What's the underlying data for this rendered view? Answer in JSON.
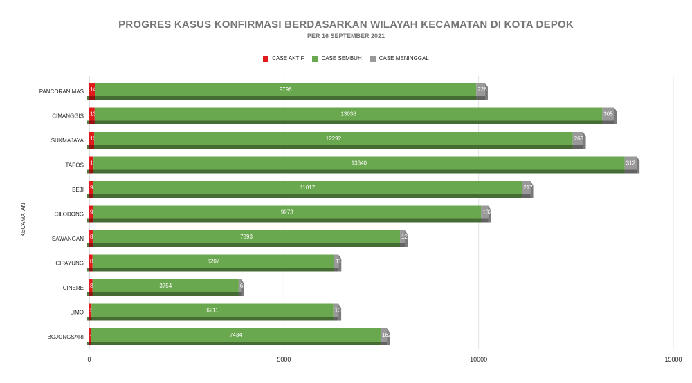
{
  "chart_data": {
    "type": "bar",
    "orientation": "horizontal",
    "stacked": true,
    "title": "PROGRES KASUS KONFIRMASI BERDASARKAN WILAYAH KECAMATAN DI KOTA DEPOK",
    "subtitle": "PER 16 SEPTEMBER 2021",
    "ylabel": "KECAMATAN",
    "xlabel": "",
    "xlim": [
      0,
      15000
    ],
    "xticks": [
      "0",
      "5000",
      "10000",
      "15000"
    ],
    "grid": true,
    "legend_position": "top",
    "categories": [
      "PANCORAN MAS",
      "CIMANGGIS",
      "SUKMAJAYA",
      "TAPOS",
      "BEJI",
      "CILODONG",
      "SAWANGAN",
      "CIPAYUNG",
      "CINERE",
      "LIMO",
      "BOJONGSARI"
    ],
    "series": [
      {
        "name": "CASE AKTIF",
        "color": "#e01b1b",
        "values": [
          143,
          139,
          126,
          109,
          97,
          92,
          88,
          84,
          83,
          58,
          48
        ]
      },
      {
        "name": "CASE SEMBUH",
        "color": "#6aa84f",
        "values": [
          9796,
          13036,
          12292,
          13640,
          11017,
          9973,
          7893,
          6207,
          3754,
          6211,
          7434
        ]
      },
      {
        "name": "CASE MENINGGAL",
        "color": "#999999",
        "values": [
          226,
          305,
          263,
          312,
          217,
          182,
          124,
          112,
          64,
          131,
          162
        ]
      }
    ]
  }
}
